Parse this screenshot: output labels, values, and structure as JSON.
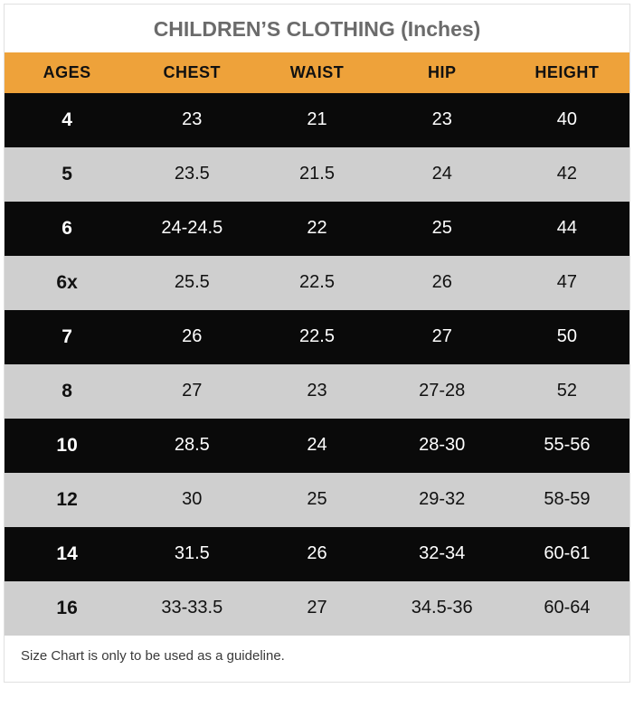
{
  "chart": {
    "title": "CHILDREN’S CLOTHING (Inches)",
    "title_color": "#6b6b6b",
    "header_bg": "#eea23a",
    "header_text_color": "#111111",
    "row_colors": {
      "dark": "#0a0a0a",
      "light": "#cfcfcf"
    },
    "text_dark": "#111111",
    "text_light": "#ffffff",
    "columns": [
      "AGES",
      "CHEST",
      "WAIST",
      "HIP",
      "HEIGHT"
    ],
    "rows": [
      {
        "shade": "dark",
        "cells": [
          "4",
          "23",
          "21",
          "23",
          "40"
        ]
      },
      {
        "shade": "light",
        "cells": [
          "5",
          "23.5",
          "21.5",
          "24",
          "42"
        ]
      },
      {
        "shade": "dark",
        "cells": [
          "6",
          "24-24.5",
          "22",
          "25",
          "44"
        ]
      },
      {
        "shade": "light",
        "cells": [
          "6x",
          "25.5",
          "22.5",
          "26",
          "47"
        ]
      },
      {
        "shade": "dark",
        "cells": [
          "7",
          "26",
          "22.5",
          "27",
          "50"
        ]
      },
      {
        "shade": "light",
        "cells": [
          "8",
          "27",
          "23",
          "27-28",
          "52"
        ]
      },
      {
        "shade": "dark",
        "cells": [
          "10",
          "28.5",
          "24",
          "28-30",
          "55-56"
        ]
      },
      {
        "shade": "light",
        "cells": [
          "12",
          "30",
          "25",
          "29-32",
          "58-59"
        ]
      },
      {
        "shade": "dark",
        "cells": [
          "14",
          "31.5",
          "26",
          "32-34",
          "60-61"
        ]
      },
      {
        "shade": "light",
        "cells": [
          "16",
          "33-33.5",
          "27",
          "34.5-36",
          "60-64"
        ]
      }
    ],
    "footer": "Size Chart is only to be used as a guideline.",
    "footer_color": "#3a3a3a"
  }
}
